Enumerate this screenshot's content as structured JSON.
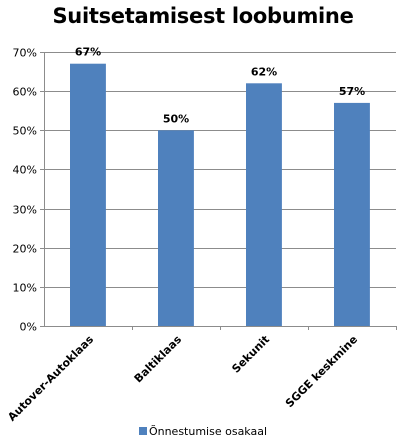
{
  "chart_data": {
    "type": "bar",
    "title": "Suitsetamisest loobumine",
    "categories": [
      "Autover-Autoklaas",
      "Baltiklaas",
      "Sekunit",
      "SGGE keskmine"
    ],
    "series": [
      {
        "name": "Õnnestumise osakaal",
        "values": [
          67,
          50,
          62,
          57
        ],
        "data_labels": [
          "67%",
          "50%",
          "62%",
          "57%"
        ],
        "color": "#4f81bd"
      }
    ],
    "yticks": [
      "0%",
      "10%",
      "20%",
      "30%",
      "40%",
      "50%",
      "60%",
      "70%"
    ],
    "ylim": [
      0,
      70
    ],
    "ylabel": "",
    "xlabel": "",
    "grid": true,
    "legend_position": "bottom"
  }
}
